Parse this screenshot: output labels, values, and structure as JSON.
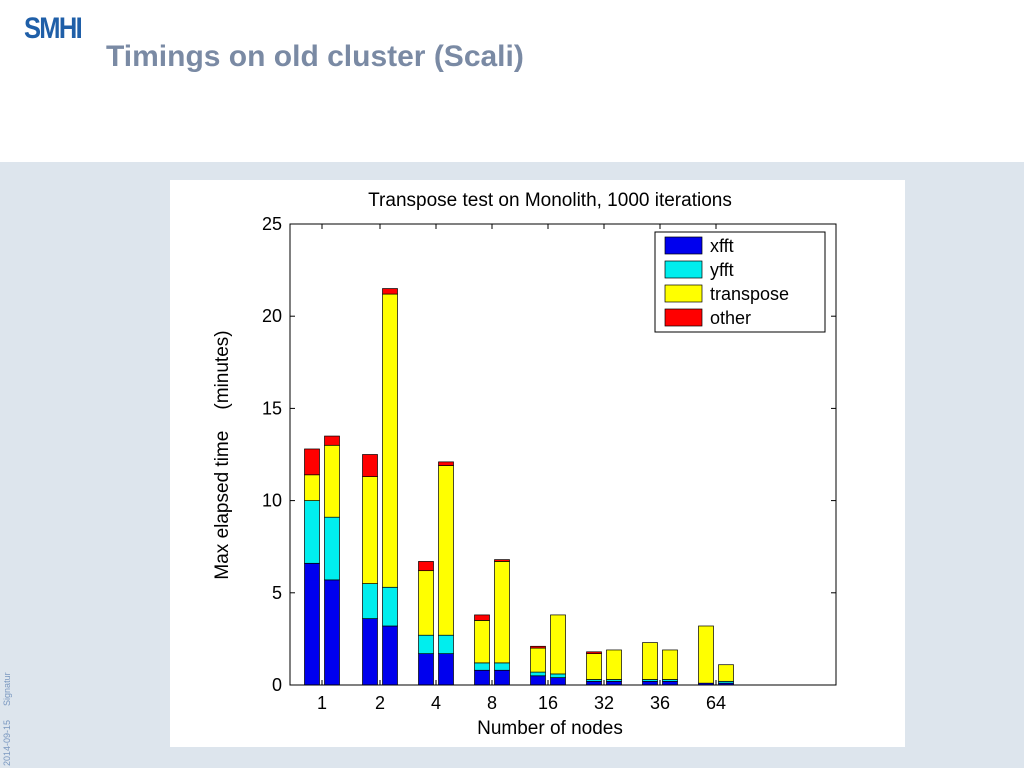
{
  "slide": {
    "logo_text": "SMHI",
    "title": "Timings on old cluster (Scali)",
    "footer_date": "2014-09-15",
    "footer_label": "Signatur"
  },
  "colors": {
    "xfft": "#0000ee",
    "yfft": "#00eeee",
    "transpose": "#ffff00",
    "other": "#ff0000",
    "band_background": "#dde5ed",
    "title_color": "#7a8aa4",
    "logo_color": "#1f5fa8"
  },
  "chart_data": {
    "type": "bar",
    "stacked": true,
    "title": "Transpose test on Monolith, 1000 iterations",
    "xlabel": "Number of nodes",
    "ylabel": "Max elapsed time    (minutes)",
    "ylim": [
      0,
      25
    ],
    "yticks": [
      0,
      5,
      10,
      15,
      20,
      25
    ],
    "categories": [
      "1",
      "2",
      "4",
      "8",
      "16",
      "32",
      "36",
      "64"
    ],
    "bars_per_category": 2,
    "legend_position": "top-right",
    "grid": false,
    "series": [
      {
        "name": "xfft",
        "values": [
          [
            6.6,
            5.7
          ],
          [
            3.6,
            3.2
          ],
          [
            1.7,
            1.7
          ],
          [
            0.8,
            0.8
          ],
          [
            0.5,
            0.4
          ],
          [
            0.2,
            0.2
          ],
          [
            0.2,
            0.2
          ],
          [
            0.1,
            0.1
          ]
        ]
      },
      {
        "name": "yfft",
        "values": [
          [
            3.4,
            3.4
          ],
          [
            1.9,
            2.1
          ],
          [
            1.0,
            1.0
          ],
          [
            0.4,
            0.4
          ],
          [
            0.2,
            0.2
          ],
          [
            0.1,
            0.1
          ],
          [
            0.1,
            0.1
          ],
          [
            0.0,
            0.1
          ]
        ]
      },
      {
        "name": "transpose",
        "values": [
          [
            1.4,
            3.9
          ],
          [
            5.8,
            15.9
          ],
          [
            3.5,
            9.2
          ],
          [
            2.3,
            5.5
          ],
          [
            1.3,
            3.2
          ],
          [
            1.4,
            1.6
          ],
          [
            2.0,
            1.6
          ],
          [
            3.1,
            0.9
          ]
        ]
      },
      {
        "name": "other",
        "values": [
          [
            1.4,
            0.5
          ],
          [
            1.2,
            0.3
          ],
          [
            0.5,
            0.2
          ],
          [
            0.3,
            0.1
          ],
          [
            0.1,
            0.0
          ],
          [
            0.1,
            0.0
          ],
          [
            0.0,
            0.0
          ],
          [
            0.0,
            0.0
          ]
        ]
      }
    ]
  }
}
